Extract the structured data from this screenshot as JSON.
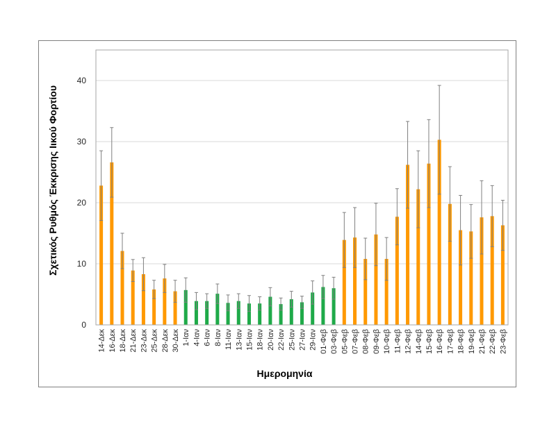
{
  "colors": {
    "orange": "#FF9900",
    "green": "#1FAA49",
    "error_bar": "#7f7f7f",
    "grid": "#d9d9d9",
    "plot_border": "#a6a6a6"
  },
  "chart_data": {
    "type": "bar",
    "xlabel": "Ημερομηνία",
    "ylabel": "Σχετικός Ρυθμός Έκκρισης Ιικού Φορτίου",
    "ylim": [
      0,
      45
    ],
    "yticks": [
      0,
      10,
      20,
      30,
      40
    ],
    "grid": true,
    "categories": [
      "14-Δεκ",
      "16-Δεκ",
      "18-Δεκ",
      "21-Δεκ",
      "23-Δεκ",
      "25-Δεκ",
      "28-Δεκ",
      "30-Δεκ",
      "1-Ιαν",
      "4-Ιαν",
      "6-Ιαν",
      "8-Ιαν",
      "11-Ιαν",
      "13-Ιαν",
      "15-Ιαν",
      "18-Ιαν",
      "20-Ιαν",
      "22-Ιαν",
      "25-Ιαν",
      "27-Ιαν",
      "29-Ιαν",
      "01-Φεβ",
      "03-Φεβ",
      "05-Φεβ",
      "07-Φεβ",
      "08-Φεβ",
      "09-Φεβ",
      "10-Φεβ",
      "11-Φεβ",
      "12-Φεβ",
      "14-Φεβ",
      "15-Φεβ",
      "16-Φεβ",
      "17-Φεβ",
      "18-Φεβ",
      "19-Φεβ",
      "21-Φεβ",
      "22-Φεβ",
      "23-Φεβ"
    ],
    "values": [
      22.8,
      26.6,
      12.1,
      8.9,
      8.3,
      5.8,
      7.6,
      5.5,
      5.7,
      3.9,
      3.9,
      5.1,
      3.6,
      3.9,
      3.5,
      3.5,
      4.6,
      3.4,
      4.2,
      3.7,
      5.3,
      6.2,
      6.0,
      13.9,
      14.3,
      10.8,
      14.8,
      10.8,
      17.7,
      26.2,
      22.2,
      26.4,
      30.3,
      19.8,
      15.5,
      15.3,
      17.6,
      17.8,
      16.3
    ],
    "error": [
      5.7,
      5.7,
      2.9,
      1.8,
      2.7,
      1.5,
      2.3,
      1.8,
      2.0,
      1.4,
      1.2,
      1.6,
      1.3,
      1.2,
      1.3,
      1.1,
      1.5,
      1.0,
      1.3,
      1.0,
      1.9,
      1.9,
      1.8,
      4.5,
      4.9,
      3.4,
      5.1,
      3.5,
      4.6,
      7.1,
      6.3,
      7.2,
      8.9,
      6.1,
      5.7,
      4.4,
      6.0,
      5.0,
      4.1
    ],
    "color_group": [
      "orange",
      "orange",
      "orange",
      "orange",
      "orange",
      "orange",
      "orange",
      "orange",
      "green",
      "green",
      "green",
      "green",
      "green",
      "green",
      "green",
      "green",
      "green",
      "green",
      "green",
      "green",
      "green",
      "green",
      "green",
      "orange",
      "orange",
      "orange",
      "orange",
      "orange",
      "orange",
      "orange",
      "orange",
      "orange",
      "orange",
      "orange",
      "orange",
      "orange",
      "orange",
      "orange",
      "orange"
    ]
  }
}
